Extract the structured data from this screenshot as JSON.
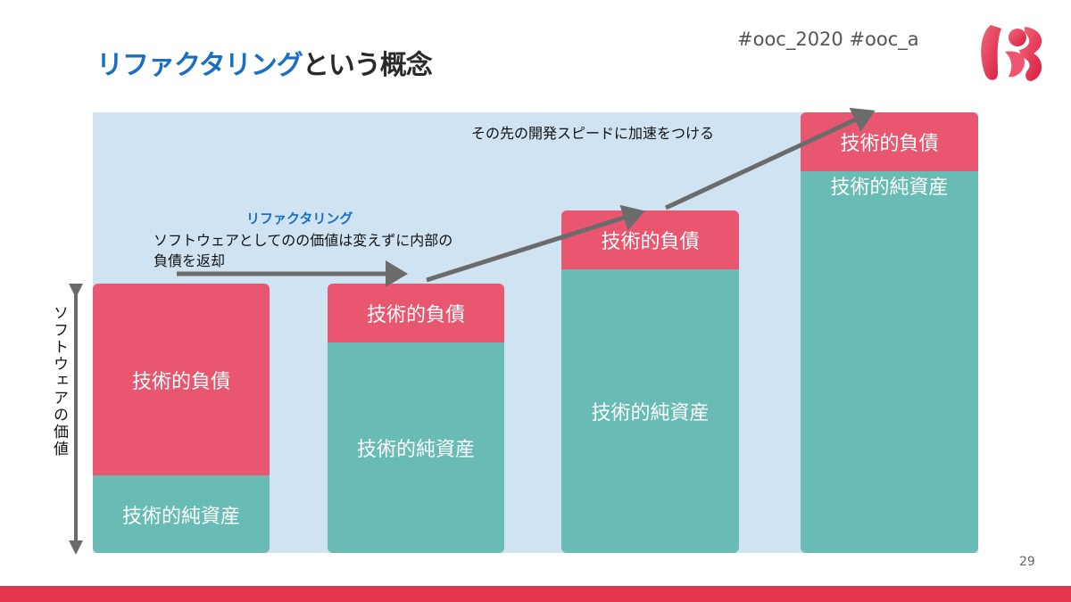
{
  "header": {
    "title_highlight": "リファクタリング",
    "title_rest": "という概念",
    "hashtags": "#ooc_2020 #ooc_a"
  },
  "diagram": {
    "y_axis_label": "ソフトウェアの価値",
    "top_annotation": "その先の開発スピードに加速をつける",
    "refactoring_note": {
      "title": "リファクタリング",
      "body": "ソフトウェアとしてのの価値は変えずに内部の負債を返却"
    },
    "bars": [
      {
        "debt_label": "技術的負債",
        "asset_label": "技術的純資産"
      },
      {
        "debt_label": "技術的負債",
        "asset_label": "技術的純資産"
      },
      {
        "debt_label": "技術的負債",
        "asset_label": "技術的純資産"
      },
      {
        "debt_label": "技術的負債",
        "asset_label": "技術的純資産"
      }
    ]
  },
  "colors": {
    "debt": "#e8566f",
    "asset": "#69bcb5",
    "panel": "#cfe3f3",
    "accent": "#1a6fc2",
    "footer": "#e4354e"
  },
  "page_number": "29"
}
